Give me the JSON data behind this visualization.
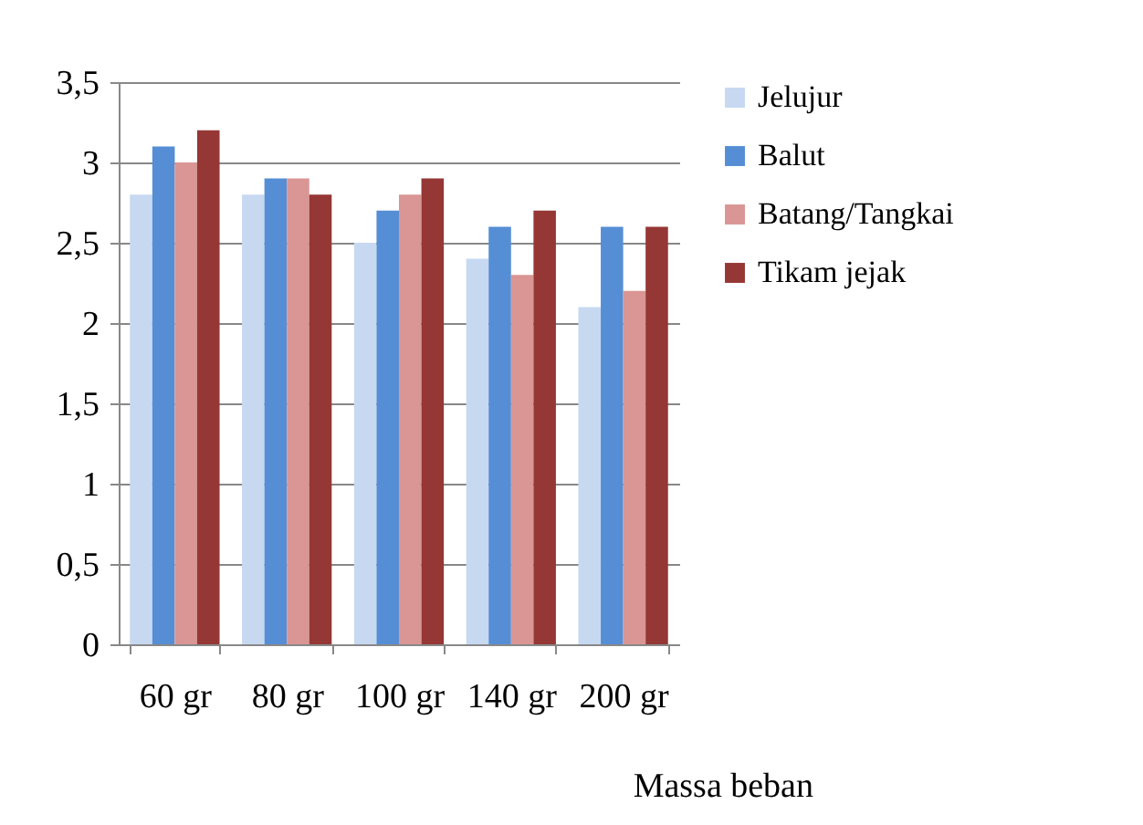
{
  "chart_data": {
    "type": "bar",
    "xlabel": "Massa beban",
    "categories": [
      "60 gr",
      "80 gr",
      "100 gr",
      "140 gr",
      "200 gr"
    ],
    "series": [
      {
        "name": "Jelujur",
        "color": "#c6d9f1",
        "values": [
          2.8,
          2.8,
          2.5,
          2.4,
          2.1
        ]
      },
      {
        "name": "Balut",
        "color": "#558ed5",
        "values": [
          3.1,
          2.9,
          2.7,
          2.6,
          2.6
        ]
      },
      {
        "name": "Batang/Tangkai",
        "color": "#d99694",
        "values": [
          3.0,
          2.9,
          2.8,
          2.3,
          2.2
        ]
      },
      {
        "name": "Tikam jejak",
        "color": "#953735",
        "values": [
          3.2,
          2.8,
          2.9,
          2.7,
          2.6
        ]
      }
    ],
    "ylim": [
      0,
      3.5
    ],
    "yticks": [
      0,
      {
        "value": 0.5,
        "label": "0,5"
      },
      1,
      {
        "value": 1.5,
        "label": "1,5"
      },
      2,
      {
        "value": 2.5,
        "label": "2,5"
      },
      3,
      {
        "value": 3.5,
        "label": "3,5"
      }
    ],
    "grid": "y",
    "legend": "right"
  }
}
